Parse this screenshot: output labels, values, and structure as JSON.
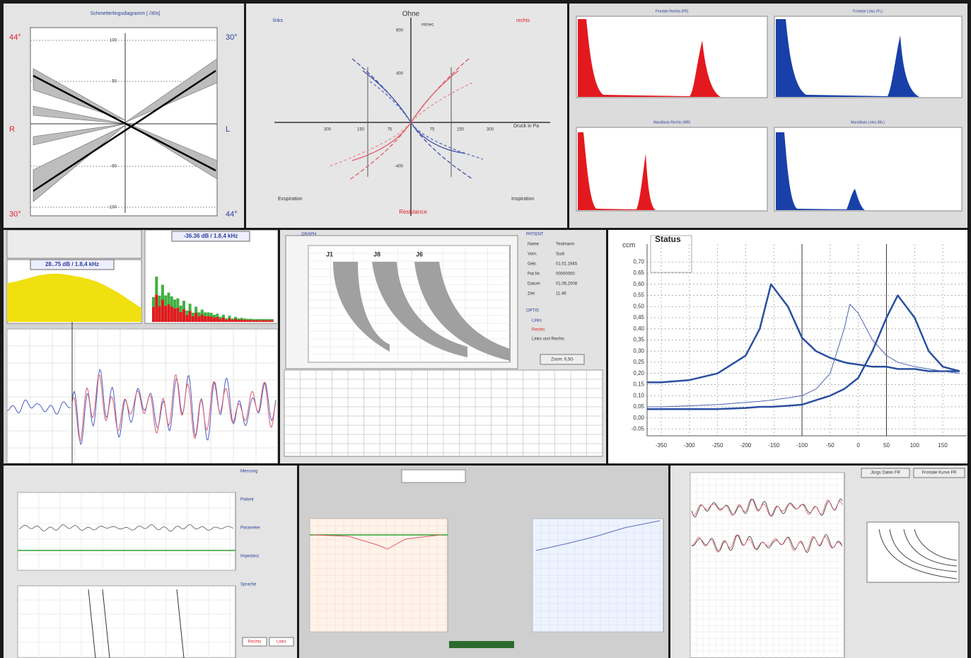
{
  "panels": {
    "butterfly": {
      "title": "Schmetterlingsdiagramm [ /30s]",
      "left_top": "44°",
      "right_top": "30°",
      "left_mid": "R",
      "right_mid": "L",
      "left_bottom": "30°",
      "right_bottom": "44°",
      "yticks": [
        "100",
        "50",
        "-50",
        "-100"
      ]
    },
    "flow": {
      "title": "Ohne",
      "unit": "ml/sec",
      "left_label": "links",
      "right_label": "rechts",
      "x_label": "Druck in Pa",
      "bottom_left": "Exspiration",
      "bottom_right": "Inspiration",
      "bottom_center": "Resistance",
      "yticks": [
        "800",
        "400",
        "-400"
      ],
      "xticks": [
        "300",
        "150",
        "75",
        "75",
        "150",
        "300"
      ]
    },
    "histograms": {
      "titles": [
        "Frontale Rechts (FR)",
        "Frontale Links (FL)",
        "Mandibula Rechts (MR)",
        "Mandibula Links (ML)"
      ]
    },
    "spectrum": {
      "right_label": "-36.36 dB / 1.8,4 kHz",
      "left_label": "28..75 dB / 1.8,4 kHz"
    },
    "audiogram": {
      "title": "GRAPH",
      "curves": [
        "J1",
        "J8",
        "J6"
      ],
      "patient_header": "PATIENT",
      "patient": [
        [
          "Name",
          "Testmann"
        ],
        [
          "Vorn.",
          "Sudi"
        ],
        [
          "Geb.",
          "01.01.1945"
        ],
        [
          "Pat.Nr.",
          "00000000"
        ],
        [
          "Datum",
          "01.06.2008"
        ],
        [
          "Zeit",
          "11:46"
        ]
      ],
      "options_header": "OPTIS",
      "options": [
        "Links",
        "Rechts",
        "Links und Rechts"
      ],
      "zoom_button": "Zoom: 6,5G"
    },
    "monitor": {
      "sections": [
        "Messung",
        "Patient",
        "Parameter",
        "Impedanz",
        "Sprache"
      ],
      "buttons": [
        "Rechts",
        "Links"
      ]
    },
    "report": {
      "buttons": [
        "Jürgs Daten FR",
        "Frontale Kurve FR"
      ]
    }
  },
  "chart_data": {
    "type": "line",
    "title": "Status",
    "y_label": "ccm",
    "x": [
      -375,
      -350,
      -300,
      -250,
      -200,
      -175,
      -155,
      -125,
      -100,
      -75,
      -50,
      -25,
      -15,
      0,
      25,
      50,
      70,
      100,
      125,
      150,
      180
    ],
    "series": [
      {
        "color": "#2a4fa0",
        "values": [
          0.16,
          0.16,
          0.17,
          0.2,
          0.28,
          0.4,
          0.6,
          0.5,
          0.36,
          0.3,
          0.27,
          0.25,
          0.245,
          0.24,
          0.23,
          0.23,
          0.22,
          0.22,
          0.21,
          0.21,
          0.21
        ]
      },
      {
        "color": "#4a62b0",
        "values": [
          0.05,
          0.05,
          0.055,
          0.06,
          0.07,
          0.075,
          0.08,
          0.09,
          0.1,
          0.13,
          0.2,
          0.4,
          0.51,
          0.47,
          0.35,
          0.28,
          0.25,
          0.23,
          0.22,
          0.21,
          0.2
        ]
      },
      {
        "color": "#2a4fa0",
        "values": [
          0.04,
          0.04,
          0.04,
          0.04,
          0.045,
          0.05,
          0.05,
          0.055,
          0.06,
          0.08,
          0.1,
          0.13,
          0.15,
          0.18,
          0.3,
          0.45,
          0.55,
          0.45,
          0.3,
          0.23,
          0.21
        ]
      }
    ],
    "reference_lines": [
      -100,
      50
    ],
    "xlim": [
      -375,
      180
    ],
    "ylim": [
      -0.08,
      0.78
    ],
    "xticks": [
      -350,
      -300,
      -250,
      -200,
      -150,
      -100,
      -50,
      0,
      50,
      100,
      150
    ],
    "yticks": [
      {
        "value": 0.7,
        "label": "0,70"
      },
      {
        "value": 0.65,
        "label": "0,65"
      },
      {
        "value": 0.6,
        "label": "0,60"
      },
      {
        "value": 0.55,
        "label": "0,55"
      },
      {
        "value": 0.5,
        "label": "0,50"
      },
      {
        "value": 0.45,
        "label": "0,45"
      },
      {
        "value": 0.4,
        "label": "0,40"
      },
      {
        "value": 0.35,
        "label": "0,35"
      },
      {
        "value": 0.3,
        "label": "0,30"
      },
      {
        "value": 0.25,
        "label": "0,25"
      },
      {
        "value": 0.2,
        "label": "0,20"
      },
      {
        "value": 0.15,
        "label": "0,15"
      },
      {
        "value": 0.1,
        "label": "0,10"
      },
      {
        "value": 0.05,
        "label": "0,05"
      },
      {
        "value": 0,
        "label": "0,00"
      },
      {
        "value": -0.05,
        "label": "-0,05"
      }
    ],
    "grid": true
  }
}
